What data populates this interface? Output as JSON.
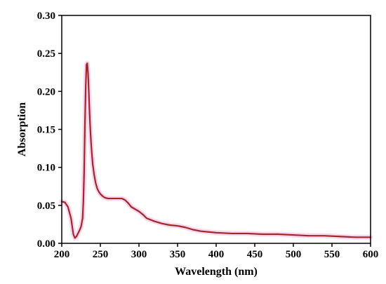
{
  "chart_data": {
    "type": "line",
    "title": "",
    "xlabel": "Wavelength (nm)",
    "ylabel": "Absorption",
    "xlim": [
      200,
      600
    ],
    "ylim": [
      0,
      0.3
    ],
    "xticks": [
      200,
      250,
      300,
      350,
      400,
      450,
      500,
      550,
      600
    ],
    "yticks": [
      0.0,
      0.05,
      0.1,
      0.15,
      0.2,
      0.25,
      0.3
    ],
    "xtick_labels": [
      "200",
      "250",
      "300",
      "350",
      "400",
      "450",
      "500",
      "550",
      "600"
    ],
    "ytick_labels": [
      "0.00",
      "0.05",
      "0.10",
      "0.15",
      "0.20",
      "0.25",
      "0.30"
    ],
    "grid": false,
    "legend": false,
    "series": [
      {
        "line_color": "#a0282a",
        "highlight_color": "#f4c8e8",
        "x": [
          200,
          204,
          208,
          212,
          215,
          217,
          219,
          221,
          223,
          225,
          227,
          228,
          229,
          230,
          231,
          232,
          233,
          234,
          235,
          236,
          237,
          238,
          239,
          240,
          242,
          244,
          246,
          248,
          250,
          253,
          256,
          260,
          265,
          270,
          275,
          278,
          282,
          286,
          290,
          295,
          300,
          305,
          310,
          320,
          330,
          340,
          350,
          360,
          370,
          380,
          390,
          400,
          420,
          440,
          460,
          480,
          500,
          520,
          540,
          560,
          580,
          600
        ],
        "y": [
          0.055,
          0.054,
          0.048,
          0.033,
          0.012,
          0.007,
          0.009,
          0.013,
          0.017,
          0.022,
          0.033,
          0.055,
          0.095,
          0.155,
          0.205,
          0.235,
          0.237,
          0.225,
          0.2,
          0.172,
          0.15,
          0.132,
          0.118,
          0.105,
          0.09,
          0.079,
          0.072,
          0.068,
          0.065,
          0.062,
          0.06,
          0.059,
          0.059,
          0.059,
          0.059,
          0.059,
          0.057,
          0.053,
          0.048,
          0.045,
          0.042,
          0.038,
          0.033,
          0.029,
          0.026,
          0.024,
          0.023,
          0.021,
          0.018,
          0.016,
          0.015,
          0.014,
          0.013,
          0.013,
          0.012,
          0.012,
          0.011,
          0.01,
          0.01,
          0.009,
          0.008,
          0.008
        ]
      }
    ]
  }
}
